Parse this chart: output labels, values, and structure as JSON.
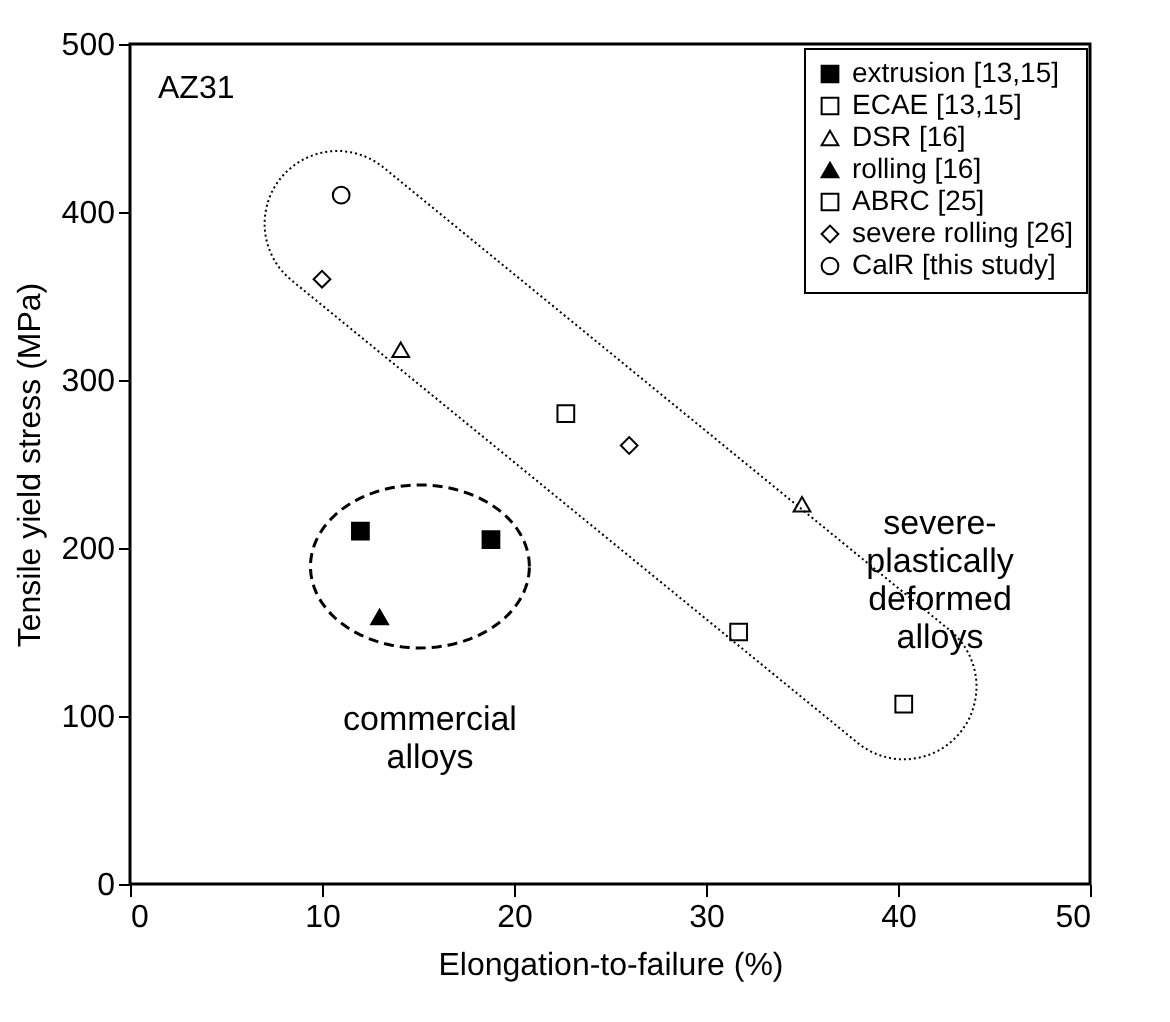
{
  "chart_data": {
    "type": "scatter",
    "xlabel": "Elongation-to-failure (%)",
    "ylabel": "Tensile yield stress (MPa)",
    "xlim": [
      0,
      50
    ],
    "xticks": [
      0,
      10,
      20,
      30,
      40,
      50
    ],
    "ylim": [
      0,
      500
    ],
    "yticks": [
      0,
      100,
      200,
      300,
      400,
      500
    ],
    "grid": false,
    "legend": "top right",
    "annotations": [
      "AZ31",
      "commercial\nalloys",
      "severe-\nplastically\ndeformed\nalloys"
    ],
    "series": [
      {
        "name": "extrusion [13,15]",
        "color": "#000000",
        "marker": "square",
        "x": [
          12.0,
          18.8
        ],
        "values": [
          210,
          205
        ]
      },
      {
        "name": "ECAE [13,15]",
        "color": "#ffffff",
        "marker": "square",
        "x": [
          31.7,
          40.3
        ],
        "values": [
          150,
          107
        ]
      },
      {
        "name": "DSR [16]",
        "color": "#ffffff",
        "marker": "triangle",
        "x": [
          14.1,
          35.0
        ],
        "values": [
          318,
          226
        ]
      },
      {
        "name": "rolling [16]",
        "color": "#000000",
        "marker": "triangle",
        "x": [
          13.0
        ],
        "values": [
          159
        ]
      },
      {
        "name": "ABRC [25]",
        "color": "#ffffff",
        "marker": "square",
        "x": [
          22.7
        ],
        "values": [
          280
        ]
      },
      {
        "name": "severe rolling [26]",
        "color": "#ffffff",
        "marker": "diamond",
        "x": [
          10.0,
          26.0
        ],
        "values": [
          360,
          261
        ]
      },
      {
        "name": "CalR [this study]",
        "color": "#ffffff",
        "marker": "circle",
        "x": [
          11.0
        ],
        "values": [
          410
        ]
      }
    ]
  }
}
